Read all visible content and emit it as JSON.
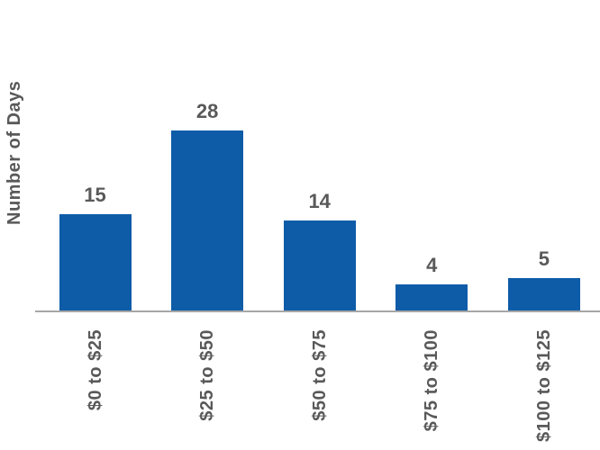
{
  "chart_data": {
    "type": "bar",
    "categories": [
      "$0 to $25",
      "$25 to $50",
      "$50 to $75",
      "$75 to $100",
      "$100 to $125"
    ],
    "values": [
      15,
      28,
      14,
      4,
      5
    ],
    "title": "",
    "xlabel": "",
    "ylabel": "Number of Days",
    "ylim": [
      0,
      30
    ],
    "grid": false,
    "legend": false,
    "orientation": "vertical",
    "value_labels_shown": true,
    "category_label_rotation_deg": 90,
    "colors": {
      "bar": "#0E5CA8",
      "text": "#595959",
      "axis_line": "#A6A6A6",
      "background": "#FFFFFF"
    }
  }
}
